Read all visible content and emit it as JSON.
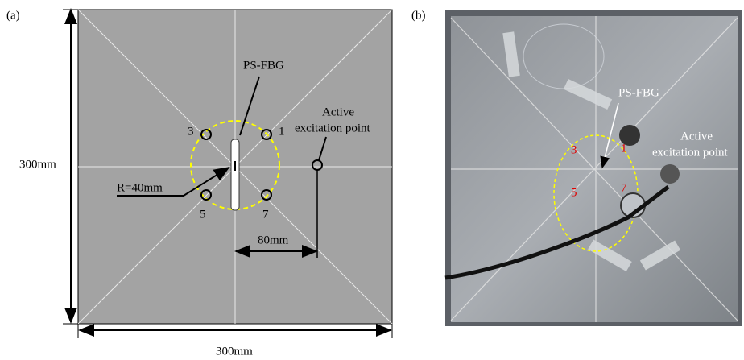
{
  "panel_a": {
    "label": "(a)",
    "sensor": "PS-FBG",
    "excitation": [
      "Active",
      "excitation point"
    ],
    "points": [
      "3",
      "1",
      "5",
      "7"
    ],
    "radius": "R=40mm",
    "offset": "80mm",
    "width": "300mm",
    "height": "300mm"
  },
  "panel_b": {
    "label": "(b)",
    "sensor": "PS-FBG",
    "excitation": [
      "Active",
      "excitation point"
    ],
    "points": [
      "3",
      "1",
      "5",
      "7"
    ]
  }
}
